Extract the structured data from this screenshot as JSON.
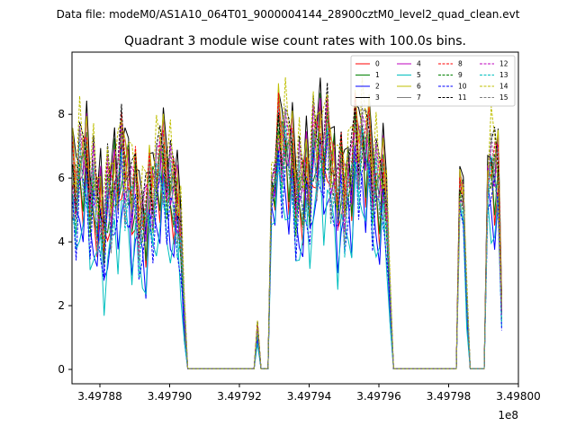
{
  "figure": {
    "suptitle": "Data file: modeM0/AS1A10_064T01_9000004144_28900cztM0_level2_quad_clean.evt"
  },
  "chart_data": {
    "type": "line",
    "title": "Quadrant 3 module wise count rates with 100.0s bins.",
    "xlabel": "",
    "ylabel": "",
    "x_offset_label": "1e8",
    "xlim": [
      3.497872,
      3.498
    ],
    "ylim": [
      -0.45,
      9.95
    ],
    "xticks": [
      3.49788,
      3.4979,
      3.49792,
      3.49794,
      3.49796,
      3.49798,
      3.498
    ],
    "xtick_labels": [
      "3.49788",
      "3.49790",
      "3.49792",
      "3.49794",
      "3.49796",
      "3.49798",
      "3.49800"
    ],
    "yticks": [
      0,
      2,
      4,
      6,
      8
    ],
    "ytick_labels": [
      "0",
      "2",
      "4",
      "6",
      "8"
    ],
    "grid": false,
    "legend_position": "top-right",
    "legend_columns": 4,
    "segments": [
      {
        "x_start": 3.497872,
        "x_end": 3.497905,
        "level": 5.2,
        "kind": "active"
      },
      {
        "x_start": 3.497905,
        "x_end": 3.497925,
        "level": 0.02,
        "kind": "zero"
      },
      {
        "x_start": 3.497925,
        "x_end": 3.497926,
        "level": 1.2,
        "kind": "spike"
      },
      {
        "x_start": 3.497926,
        "x_end": 3.497929,
        "level": 0.02,
        "kind": "zero"
      },
      {
        "x_start": 3.497929,
        "x_end": 3.497964,
        "level": 6.0,
        "kind": "active"
      },
      {
        "x_start": 3.497964,
        "x_end": 3.497983,
        "level": 0.02,
        "kind": "zero"
      },
      {
        "x_start": 3.497983,
        "x_end": 3.497986,
        "level": 6.5,
        "kind": "active"
      },
      {
        "x_start": 3.497986,
        "x_end": 3.497991,
        "level": 0.02,
        "kind": "zero"
      },
      {
        "x_start": 3.497991,
        "x_end": 3.497996,
        "level": 6.2,
        "kind": "active"
      }
    ],
    "series": [
      {
        "name": "0",
        "color": "#ff0000",
        "dash": "solid",
        "offset": 0.0
      },
      {
        "name": "1",
        "color": "#008000",
        "dash": "solid",
        "offset": 0.3
      },
      {
        "name": "2",
        "color": "#0000ff",
        "dash": "solid",
        "offset": -0.9
      },
      {
        "name": "3",
        "color": "#000000",
        "dash": "solid",
        "offset": 1.0
      },
      {
        "name": "4",
        "color": "#bf00bf",
        "dash": "solid",
        "offset": 0.6
      },
      {
        "name": "5",
        "color": "#00bfbf",
        "dash": "solid",
        "offset": -1.3
      },
      {
        "name": "6",
        "color": "#bfbf00",
        "dash": "solid",
        "offset": 0.8
      },
      {
        "name": "7",
        "color": "#808080",
        "dash": "solid",
        "offset": 0.4
      },
      {
        "name": "8",
        "color": "#ff0000",
        "dash": "dashed",
        "offset": 0.7
      },
      {
        "name": "9",
        "color": "#008000",
        "dash": "dashed",
        "offset": 0.2
      },
      {
        "name": "10",
        "color": "#0000ff",
        "dash": "dashed",
        "offset": -0.6
      },
      {
        "name": "11",
        "color": "#000000",
        "dash": "dashed",
        "offset": 0.9
      },
      {
        "name": "12",
        "color": "#bf00bf",
        "dash": "dashed",
        "offset": 0.5
      },
      {
        "name": "13",
        "color": "#00bfbf",
        "dash": "dashed",
        "offset": -0.2
      },
      {
        "name": "14",
        "color": "#bfbf00",
        "dash": "dashed",
        "offset": 1.1
      },
      {
        "name": "15",
        "color": "#808080",
        "dash": "dashed",
        "offset": 0.1
      }
    ]
  }
}
